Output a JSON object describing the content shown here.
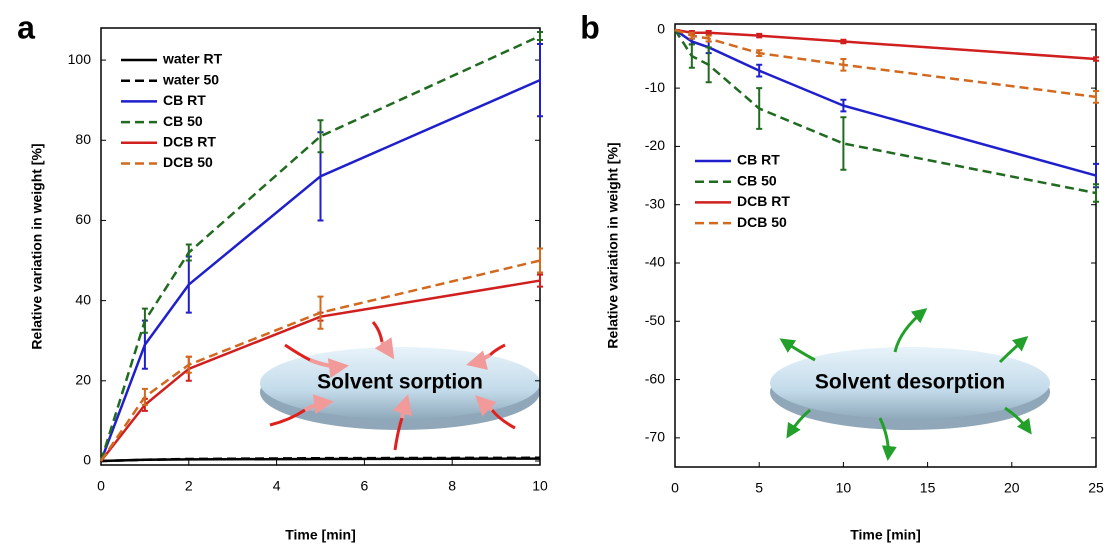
{
  "chart_data": [
    {
      "type": "line",
      "panel": "a",
      "xlabel": "Time [min]",
      "ylabel": "Relative variation in weight [%]",
      "annotation": "Solvent sorption",
      "annotation_color": "#e0201e",
      "legend": "upper left",
      "x": [
        0,
        1,
        2,
        5,
        10
      ],
      "xlim": [
        0,
        10
      ],
      "xticks": [
        0,
        2,
        4,
        6,
        8,
        10
      ],
      "ylim": [
        -1,
        108
      ],
      "yticks": [
        0,
        20,
        40,
        60,
        80,
        100
      ],
      "series": [
        {
          "name": "water RT",
          "color": "#000000",
          "dash": false,
          "values": [
            0,
            0.3,
            0.4,
            0.5,
            0.6
          ],
          "errors": [
            null,
            null,
            null,
            null,
            null
          ]
        },
        {
          "name": "water 50",
          "color": "#000000",
          "dash": true,
          "values": [
            0,
            0.3,
            0.5,
            0.7,
            0.8
          ],
          "errors": [
            null,
            null,
            null,
            null,
            null
          ]
        },
        {
          "name": "CB RT",
          "color": "#1f1fcc",
          "dash": false,
          "values": [
            0,
            29,
            44,
            71,
            95
          ],
          "errors": [
            null,
            6,
            7,
            11,
            9
          ]
        },
        {
          "name": "CB 50",
          "color": "#206b20",
          "dash": true,
          "values": [
            0,
            35,
            52,
            81,
            106
          ],
          "errors": [
            null,
            3,
            2,
            4,
            1
          ]
        },
        {
          "name": "DCB RT",
          "color": "#d01f1f",
          "dash": false,
          "values": [
            0,
            14,
            23,
            36,
            45
          ],
          "errors": [
            null,
            1.5,
            3,
            1,
            1.5
          ]
        },
        {
          "name": "DCB 50",
          "color": "#d2691e",
          "dash": true,
          "values": [
            0,
            16,
            24,
            37,
            50
          ],
          "errors": [
            null,
            2,
            2,
            4,
            3
          ]
        }
      ]
    },
    {
      "type": "line",
      "panel": "b",
      "xlabel": "Time [min]",
      "ylabel": "Relative variation in weight [%]",
      "annotation": "Solvent desorption",
      "annotation_color": "#22a02a",
      "legend": "center left",
      "x": [
        0,
        1,
        2,
        5,
        10,
        25
      ],
      "xlim": [
        0,
        25
      ],
      "xticks": [
        0,
        5,
        10,
        15,
        20,
        25
      ],
      "ylim": [
        -75,
        1
      ],
      "yticks": [
        0,
        -10,
        -20,
        -30,
        -40,
        -50,
        -60,
        -70
      ],
      "series": [
        {
          "name": "CB RT",
          "color": "#1f1fcc",
          "dash": false,
          "values": [
            0,
            -2,
            -3,
            -7,
            -13,
            -25
          ],
          "errors": [
            null,
            0.5,
            1,
            1,
            1,
            2
          ]
        },
        {
          "name": "CB 50",
          "color": "#206b20",
          "dash": true,
          "values": [
            0,
            -4.5,
            -6,
            -13.5,
            -19.5,
            -28
          ],
          "errors": [
            null,
            2,
            3,
            3.5,
            4.5,
            1.5
          ]
        },
        {
          "name": "DCB RT",
          "color": "#d01f1f",
          "dash": false,
          "values": [
            0,
            -0.5,
            -0.5,
            -1,
            -2,
            -5
          ],
          "errors": [
            null,
            0.3,
            0.3,
            0.3,
            0.3,
            0.3
          ]
        },
        {
          "name": "DCB 50",
          "color": "#d2691e",
          "dash": true,
          "values": [
            0,
            -1,
            -1.5,
            -4,
            -6,
            -11.5
          ],
          "errors": [
            null,
            0.5,
            0.5,
            0.5,
            1,
            1
          ]
        }
      ]
    }
  ]
}
